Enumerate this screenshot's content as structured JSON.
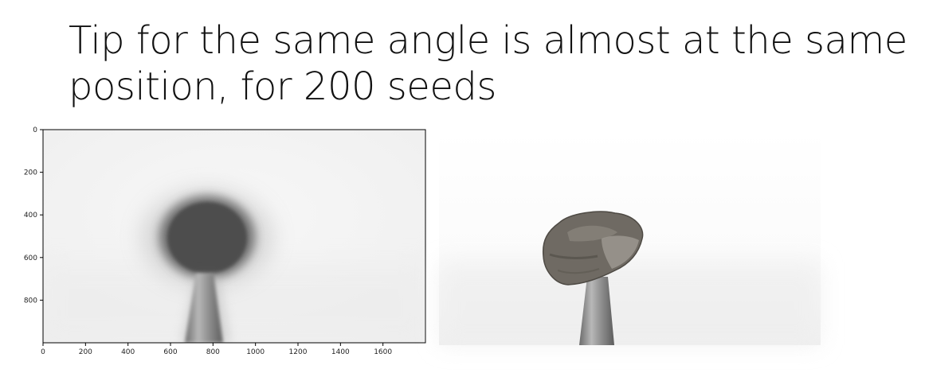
{
  "slide": {
    "title_line1": "Tip for the same angle is almost at the same",
    "title_line2": "position, for 200 seeds"
  },
  "plot": {
    "x_ticks": [
      "0",
      "200",
      "400",
      "600",
      "800",
      "1000",
      "1200",
      "1400",
      "1600"
    ],
    "y_ticks": [
      "0",
      "200",
      "400",
      "600",
      "800"
    ]
  },
  "colors": {
    "background": "#ffffff",
    "text": "#111111",
    "blur_seed": "#4a4a4a",
    "seed": "#6e6a64",
    "needle": "#8a8a8a"
  },
  "icons": [
    "averaged-seed-image",
    "seed-photo"
  ]
}
